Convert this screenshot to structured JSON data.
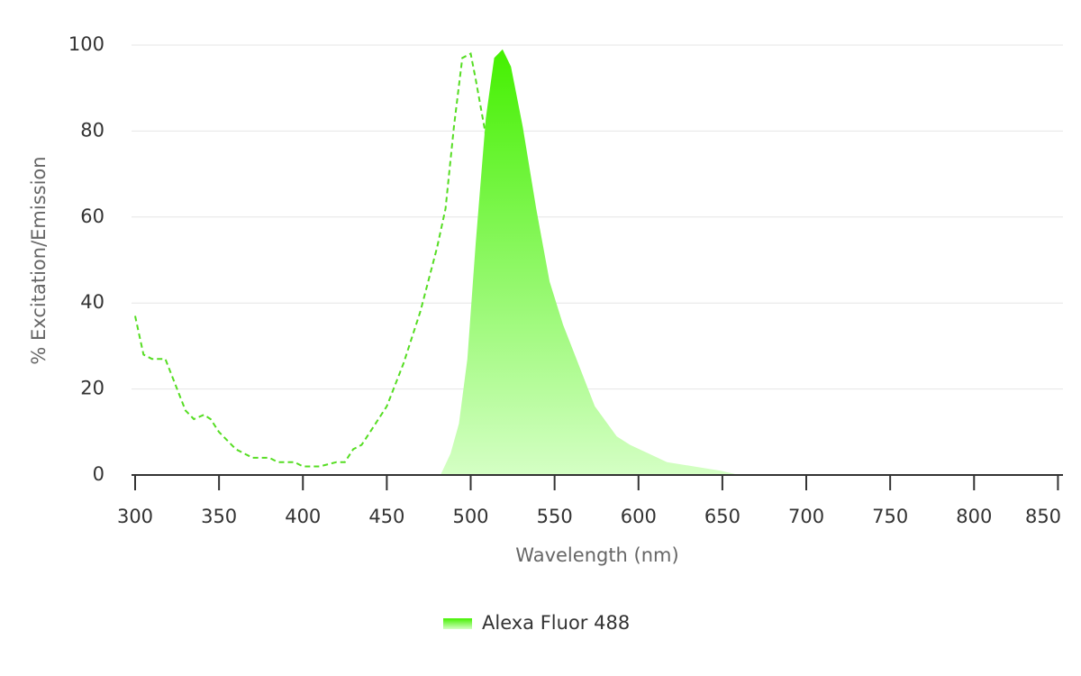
{
  "chart_data": {
    "type": "line",
    "x_label": "Wavelength (nm)",
    "y_label": "% Excitation/Emission",
    "xlim": [
      300,
      853
    ],
    "xticks": [
      300,
      350,
      400,
      450,
      500,
      550,
      600,
      650,
      700,
      750,
      800,
      850
    ],
    "ylim": [
      0,
      100
    ],
    "yticks": [
      0,
      20,
      40,
      60,
      80,
      100
    ],
    "grid": true,
    "series": [
      {
        "style": "dashed",
        "color": "#55dd22",
        "x": [
          300,
          305,
          310,
          318,
          325,
          330,
          335,
          341,
          345,
          350,
          360,
          370,
          380,
          385,
          395,
          400,
          410,
          420,
          425,
          430,
          435,
          440,
          450,
          460,
          470,
          480,
          485,
          490,
          495,
          500,
          503,
          509,
          517,
          523,
          528,
          536,
          541,
          550,
          600,
          853
        ],
        "values": [
          37,
          28,
          27,
          27,
          20,
          15,
          13,
          14,
          13,
          10,
          6,
          4,
          4,
          3,
          3,
          2,
          2,
          3,
          3,
          6,
          7,
          10,
          16,
          26,
          38,
          53,
          62,
          81,
          97,
          98,
          92,
          79,
          48,
          18,
          8,
          2,
          1,
          0,
          0,
          0
        ]
      },
      {
        "name": "Alexa Fluor 488",
        "style": "area",
        "color": "#44f000",
        "fade_color": "#d4ffc4",
        "x": [
          482,
          488,
          493,
          498,
          503,
          509,
          514,
          519,
          524,
          531,
          539,
          547,
          555,
          563,
          574,
          587,
          595,
          606,
          617,
          633,
          649,
          660,
          853
        ],
        "values": [
          0,
          5,
          12,
          27,
          54,
          83,
          97,
          99,
          95,
          81,
          62,
          45,
          35,
          27,
          16,
          9,
          7,
          5,
          3,
          2,
          1,
          0,
          0
        ]
      }
    ]
  }
}
